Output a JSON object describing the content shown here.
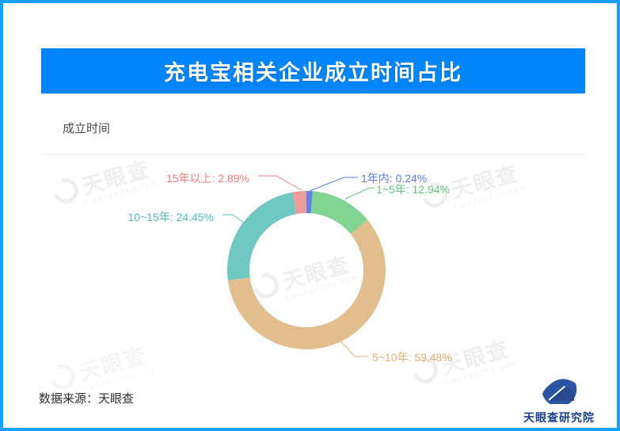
{
  "frame": {
    "border_color": "#14a0fc"
  },
  "header": {
    "title": "充电宝相关企业成立时间占比",
    "bg": "#0285fb",
    "text_color": "#ffffff"
  },
  "chart_section": {
    "subtitle": "成立时间"
  },
  "chart_data": {
    "type": "pie",
    "donut": true,
    "title": "充电宝相关企业成立时间占比",
    "subtitle": "成立时间",
    "categories": [
      "1年内",
      "1~5年",
      "5~10年",
      "10~15年",
      "15年以上"
    ],
    "values": [
      0.24,
      12.94,
      59.48,
      24.45,
      2.89
    ],
    "unit": "%",
    "labels": [
      "1年内: 0.24%",
      "1~5年: 12.94%",
      "5~10年: 59.48%",
      "10~15年: 24.45%",
      "15年以上: 2.89%"
    ],
    "colors": [
      "#6282e9",
      "#83d492",
      "#e2be8e",
      "#70c8c3",
      "#ee9b9b"
    ],
    "label_colors": [
      "#5a7deb",
      "#62c57d",
      "#e1af73",
      "#4fbdb7",
      "#f07d7d"
    ],
    "legend": false,
    "label_position": "outside",
    "inner_radius_ratio": 0.72
  },
  "watermark": {
    "brand": "天眼查",
    "domain": "TianYanCha.com",
    "color": "#efefef"
  },
  "source": {
    "label": "数据来源：天眼查"
  },
  "footer_logo": {
    "name": "天眼查研究院",
    "icon_color": "#2b55a3"
  }
}
